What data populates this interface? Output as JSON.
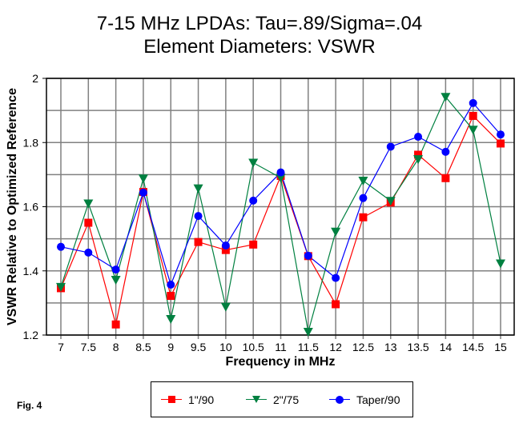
{
  "chart_data": {
    "type": "line",
    "title": "7-15 MHz LPDAs:  Tau=.89/Sigma=.04",
    "subtitle": "Element Diameters:  VSWR",
    "xlabel": "Frequency in MHz",
    "ylabel": "VSWR Relative to Optimized Reference",
    "xlim": [
      7,
      15
    ],
    "ylim": [
      1.2,
      2
    ],
    "grid": true,
    "legend": "bottom",
    "x": [
      7,
      7.5,
      8,
      8.5,
      9,
      9.5,
      10,
      10.5,
      11,
      11.5,
      12,
      12.5,
      13,
      13.5,
      14,
      14.5,
      15
    ],
    "x_tick_labels": [
      "7",
      "7.5",
      "8",
      "8.5",
      "9",
      "9.5",
      "10",
      "10.5",
      "11",
      "11.5",
      "12",
      "12.5",
      "13",
      "13.5",
      "14",
      "14.5",
      "15"
    ],
    "y_ticks": [
      1.2,
      1.4,
      1.6,
      1.8,
      2
    ],
    "y_tick_labels": [
      "1.2",
      "1.4",
      "1.6",
      "1.8",
      "2"
    ],
    "y_gridlines": [
      1.2,
      1.3,
      1.4,
      1.5,
      1.6,
      1.7,
      1.8,
      1.9,
      2.0
    ],
    "series": [
      {
        "name": "1\"/90",
        "color": "#ff0000",
        "marker": "square",
        "values": [
          1.346,
          1.55,
          1.233,
          1.646,
          1.322,
          1.49,
          1.465,
          1.482,
          1.696,
          1.446,
          1.296,
          1.567,
          1.613,
          1.762,
          1.689,
          1.883,
          1.797
        ]
      },
      {
        "name": "2\"/75",
        "color": "#008040",
        "marker": "triangle-down",
        "values": [
          1.35,
          1.61,
          1.372,
          1.688,
          1.25,
          1.657,
          1.288,
          1.737,
          1.69,
          1.21,
          1.522,
          1.681,
          1.618,
          1.748,
          1.942,
          1.84,
          1.423
        ]
      },
      {
        "name": "Taper/90",
        "color": "#0000ff",
        "marker": "circle",
        "values": [
          1.475,
          1.457,
          1.404,
          1.644,
          1.357,
          1.571,
          1.479,
          1.619,
          1.707,
          1.447,
          1.378,
          1.627,
          1.787,
          1.818,
          1.771,
          1.923,
          1.825
        ]
      }
    ]
  },
  "figure_label": "Fig. 4"
}
